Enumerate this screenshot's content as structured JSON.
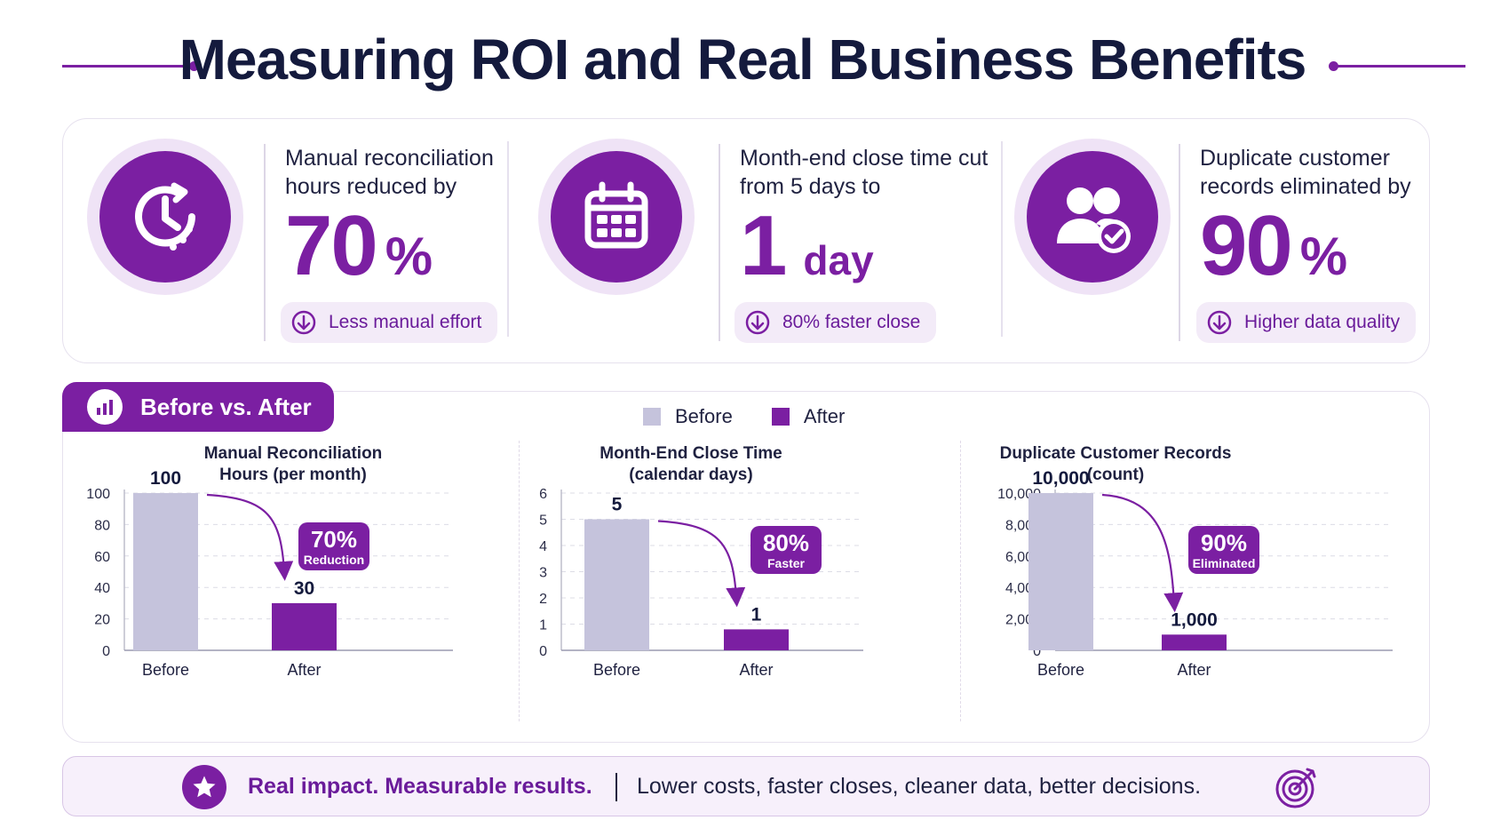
{
  "title": "Measuring ROI and Real Business Benefits",
  "kpis": [
    {
      "icon": "clock-icon",
      "desc": "Manual reconciliation hours reduced by",
      "value": "70",
      "unit": "%",
      "pill": "Less manual effort"
    },
    {
      "icon": "calendar-icon",
      "desc": "Month-end close time cut from 5 days to",
      "value": "1",
      "unit": "day",
      "pill": "80% faster close"
    },
    {
      "icon": "users-check-icon",
      "desc": "Duplicate customer records eliminated by",
      "value": "90",
      "unit": "%",
      "pill": "Higher data quality"
    }
  ],
  "section": {
    "tab_label": "Before vs. After",
    "legend": {
      "before": "Before",
      "after": "After"
    }
  },
  "colors": {
    "accent": "#7b1fa2",
    "before": "#c5c3dc",
    "after": "#7b1fa2",
    "text": "#141a3d"
  },
  "chart_data": [
    {
      "type": "bar",
      "title": "Manual Reconciliation Hours (per month)",
      "title_lines": [
        "Manual Reconciliation",
        "Hours (per month)"
      ],
      "categories": [
        "Before",
        "After"
      ],
      "values": [
        100,
        30
      ],
      "value_labels": [
        "100",
        "30"
      ],
      "ylim": [
        0,
        100
      ],
      "yticks": [
        0,
        20,
        40,
        60,
        80,
        100
      ],
      "ytick_labels": [
        "0",
        "20",
        "40",
        "60",
        "80",
        "100"
      ],
      "badge": {
        "big": "70%",
        "small": "Reduction"
      }
    },
    {
      "type": "bar",
      "title": "Month-End Close Time (calendar days)",
      "title_lines": [
        "Month-End Close Time",
        "(calendar days)"
      ],
      "categories": [
        "Before",
        "After"
      ],
      "values": [
        5,
        0.8
      ],
      "value_labels": [
        "5",
        "1"
      ],
      "ylim": [
        0,
        6
      ],
      "yticks": [
        0,
        1,
        2,
        3,
        4,
        5,
        6
      ],
      "ytick_labels": [
        "0",
        "1",
        "2",
        "3",
        "4",
        "5",
        "6"
      ],
      "badge": {
        "big": "80%",
        "small": "Faster"
      }
    },
    {
      "type": "bar",
      "title": "Duplicate Customer Records (count)",
      "title_lines": [
        "Duplicate Customer Records",
        "(count)"
      ],
      "categories": [
        "Before",
        "After"
      ],
      "values": [
        10000,
        1000
      ],
      "value_labels": [
        "10,000",
        "1,000"
      ],
      "ylim": [
        0,
        10000
      ],
      "yticks": [
        0,
        2000,
        4000,
        6000,
        8000,
        10000
      ],
      "ytick_labels": [
        "0",
        "2,000",
        "4,000",
        "6,000",
        "8,000",
        "10,000"
      ],
      "badge": {
        "big": "90%",
        "small": "Eliminated"
      }
    }
  ],
  "footer": {
    "headline": "Real impact. Measurable results.",
    "sub": "Lower costs, faster closes, cleaner data, better decisions."
  }
}
